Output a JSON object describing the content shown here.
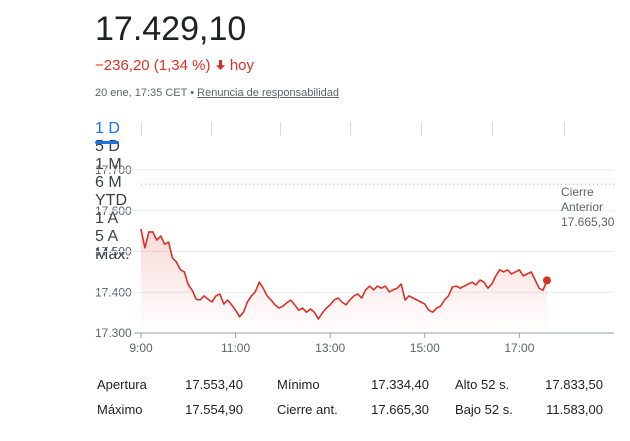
{
  "chart_data": {
    "type": "line",
    "price": "17.429,10",
    "change": "−236,20 (1,34 %)",
    "change_period": "hoy",
    "timestamp": "20 ene, 17:35 CET",
    "separator": "•",
    "disclaimer": "Renuncia de responsabilidad",
    "ranges": [
      "1 D",
      "5 D",
      "1 M",
      "6 M",
      "YTD",
      "1 A",
      "5 A",
      "Máx."
    ],
    "selected_range": "1 D",
    "x": [
      540,
      545,
      550,
      555,
      560,
      565,
      570,
      575,
      580,
      585,
      590,
      595,
      600,
      605,
      610,
      615,
      620,
      625,
      630,
      635,
      640,
      645,
      650,
      655,
      660,
      665,
      670,
      675,
      680,
      685,
      690,
      695,
      700,
      705,
      710,
      715,
      720,
      725,
      730,
      735,
      740,
      745,
      750,
      755,
      760,
      765,
      770,
      775,
      780,
      785,
      790,
      795,
      800,
      805,
      810,
      815,
      820,
      825,
      830,
      835,
      840,
      845,
      850,
      855,
      860,
      865,
      870,
      875,
      880,
      885,
      890,
      895,
      900,
      905,
      910,
      915,
      920,
      925,
      930,
      935,
      940,
      945,
      950,
      955,
      960,
      965,
      970,
      975,
      980,
      985,
      990,
      995,
      1000,
      1005,
      1010,
      1015,
      1020,
      1025,
      1030,
      1035,
      1040,
      1045,
      1050,
      1055
    ],
    "series": [
      {
        "color": "#d93025",
        "values": [
          17554.9,
          17509,
          17548,
          17548,
          17528,
          17538,
          17518,
          17523,
          17484,
          17474,
          17455,
          17450,
          17418,
          17405,
          17383,
          17381,
          17391,
          17383,
          17376,
          17391,
          17396,
          17371,
          17381,
          17369,
          17356,
          17340,
          17351,
          17376,
          17391,
          17401,
          17425,
          17410,
          17391,
          17381,
          17369,
          17361,
          17366,
          17374,
          17381,
          17369,
          17356,
          17361,
          17351,
          17359,
          17351,
          17334.4,
          17349,
          17361,
          17369,
          17381,
          17386,
          17376,
          17369,
          17381,
          17391,
          17396,
          17386,
          17406,
          17415,
          17406,
          17415,
          17410,
          17415,
          17401,
          17406,
          17410,
          17420,
          17381,
          17391,
          17386,
          17381,
          17376,
          17371,
          17356,
          17351,
          17361,
          17366,
          17381,
          17391,
          17413,
          17415,
          17410,
          17415,
          17420,
          17425,
          17418,
          17430,
          17425,
          17410,
          17420,
          17440,
          17455,
          17450,
          17455,
          17445,
          17450,
          17455,
          17440,
          17445,
          17450,
          17430,
          17410,
          17405,
          17429.1
        ]
      }
    ],
    "reference_line": {
      "label": "Cierre Anterior",
      "value": 17665.3,
      "value_label": "17.665,30"
    },
    "xlim": [
      540,
      1140
    ],
    "xticks": [
      {
        "value": 540,
        "label": "9:00"
      },
      {
        "value": 660,
        "label": "11:00"
      },
      {
        "value": 780,
        "label": "13:00"
      },
      {
        "value": 900,
        "label": "15:00"
      },
      {
        "value": 1020,
        "label": "17:00"
      }
    ],
    "ylim": [
      17300,
      17700
    ],
    "yticks": [
      {
        "value": 17300,
        "label": "17.300"
      },
      {
        "value": 17400,
        "label": "17.400"
      },
      {
        "value": 17500,
        "label": "17.500"
      },
      {
        "value": 17600,
        "label": "17.600"
      },
      {
        "value": 17700,
        "label": "17.700"
      }
    ],
    "grid": true,
    "stats": [
      [
        [
          "Apertura",
          "17.553,40"
        ],
        [
          "Mínimo",
          "17.334,40"
        ],
        [
          "Alto 52 s.",
          "17.833,50"
        ]
      ],
      [
        [
          "Máximo",
          "17.554,90"
        ],
        [
          "Cierre ant.",
          "17.665,30"
        ],
        [
          "Bajo 52 s.",
          "11.583,00"
        ]
      ]
    ]
  }
}
